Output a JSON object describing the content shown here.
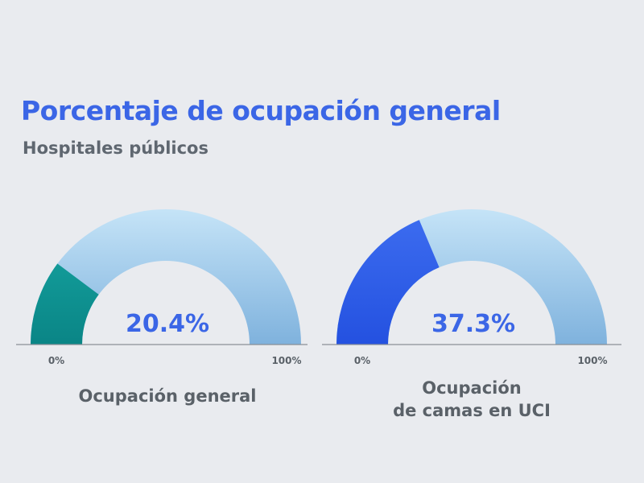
{
  "title": "Porcentaje de ocupación general",
  "subtitle": "Hospitales públicos",
  "colors": {
    "title": "#3b66e6",
    "subtitle": "#5f6770",
    "value_text": "#3b66e6",
    "track_top": "#c4e3f7",
    "track_bottom": "#7fb2dd",
    "gauge1_fill": "#0f8f91",
    "gauge2_fill": "#3461e8"
  },
  "chart_data": [
    {
      "type": "gauge",
      "value": 20.4,
      "value_label": "20.4%",
      "range": [
        0,
        100
      ],
      "min_label": "0%",
      "max_label": "100%",
      "label_lines": [
        "Ocupación general"
      ]
    },
    {
      "type": "gauge",
      "value": 37.3,
      "value_label": "37.3%",
      "range": [
        0,
        100
      ],
      "min_label": "0%",
      "max_label": "100%",
      "label_lines": [
        "Ocupación",
        "de camas en UCI"
      ]
    }
  ]
}
